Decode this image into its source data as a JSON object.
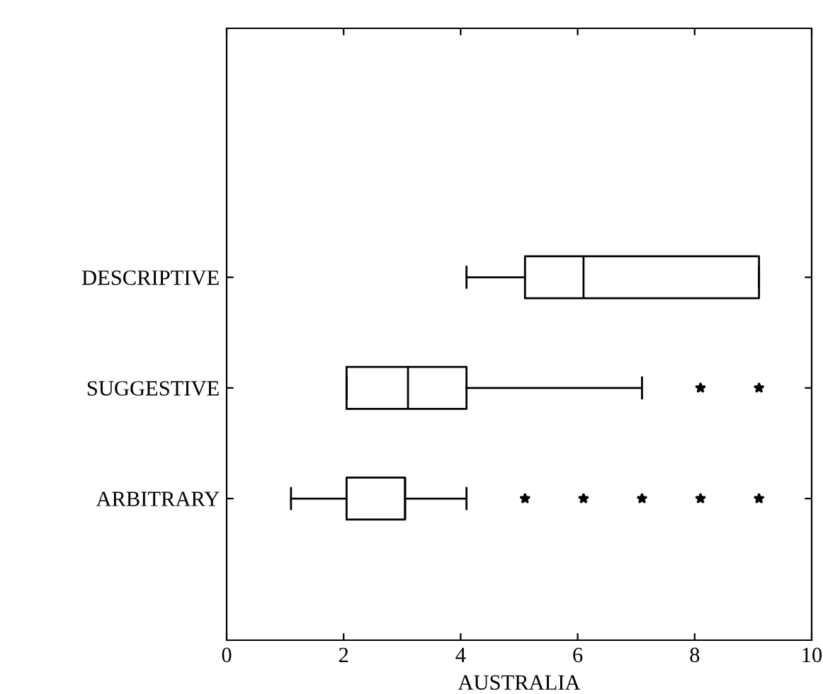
{
  "chart_data": {
    "type": "box",
    "orientation": "horizontal",
    "xlabel": "AUSTRALIA",
    "categories": [
      "DESCRIPTIVE",
      "SUGGESTIVE",
      "ARBITRARY"
    ],
    "boxes": [
      {
        "low": 4.1,
        "q1": 5.1,
        "median": 6.1,
        "q3": 9.1,
        "high": 9.1
      },
      {
        "low": 2.05,
        "q1": 2.05,
        "median": 3.1,
        "q3": 4.1,
        "high": 7.1,
        "outliers": [
          8.1,
          9.1
        ]
      },
      {
        "low": 1.1,
        "q1": 2.05,
        "median": 3.05,
        "q3": 3.05,
        "high": 4.1,
        "outliers": [
          5.1,
          6.1,
          7.1,
          8.1,
          9.1
        ]
      }
    ],
    "xlim": [
      0,
      10
    ],
    "xticks": [
      0,
      2,
      4,
      6,
      8,
      10
    ],
    "grid": false,
    "legend": false,
    "marker": "star"
  }
}
